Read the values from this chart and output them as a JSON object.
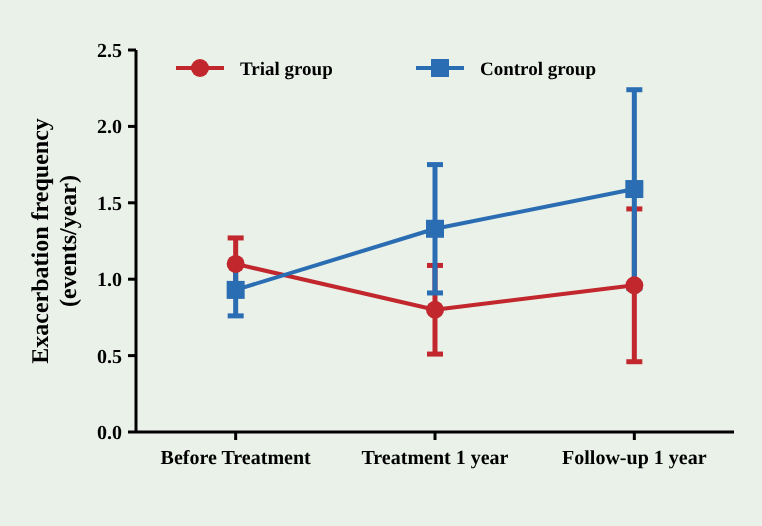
{
  "chart_data": {
    "type": "line",
    "ylabel": "Exacerbation frequency\n(events/year)",
    "categories": [
      "Before Treatment",
      "Treatment 1 year",
      "Follow-up 1 year"
    ],
    "ylim": [
      0,
      2.5
    ],
    "yticks": [
      {
        "value": 0,
        "label": "0.0"
      },
      {
        "value": 0.5,
        "label": "0.5"
      },
      {
        "value": 1,
        "label": "1.0"
      },
      {
        "value": 1.5,
        "label": "1.5"
      },
      {
        "value": 2,
        "label": "2.0"
      },
      {
        "value": 2.5,
        "label": "2.5"
      }
    ],
    "grid": false,
    "legend": "top left",
    "line_style": "solid",
    "series": [
      {
        "name": "Trial group",
        "color": "#c1272d",
        "marker": "circle",
        "values": [
          1.1,
          0.8,
          0.96
        ],
        "errors": [
          0.17,
          0.29,
          0.5
        ]
      },
      {
        "name": "Control group",
        "color": "#2a6db3",
        "marker": "square",
        "values": [
          0.93,
          1.33,
          1.59
        ],
        "errors": [
          0.17,
          0.42,
          0.65
        ]
      }
    ]
  }
}
